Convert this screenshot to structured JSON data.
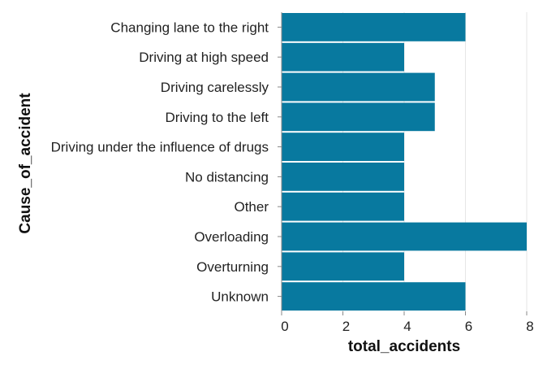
{
  "chart_data": {
    "type": "bar",
    "orientation": "horizontal",
    "categories": [
      "Changing lane to the right",
      "Driving at high speed",
      "Driving carelessly",
      "Driving to the left",
      "Driving under the influence of drugs",
      "No distancing",
      "Other",
      "Overloading",
      "Overturning",
      "Unknown"
    ],
    "values": [
      6,
      4,
      5,
      5,
      4,
      4,
      4,
      8,
      4,
      6
    ],
    "xlabel": "total_accidents",
    "ylabel": "Cause_of_accident",
    "xlim": [
      0,
      8
    ],
    "xticks": [
      0,
      2,
      4,
      6,
      8
    ],
    "grid": true,
    "bar_color": "#08799f"
  }
}
